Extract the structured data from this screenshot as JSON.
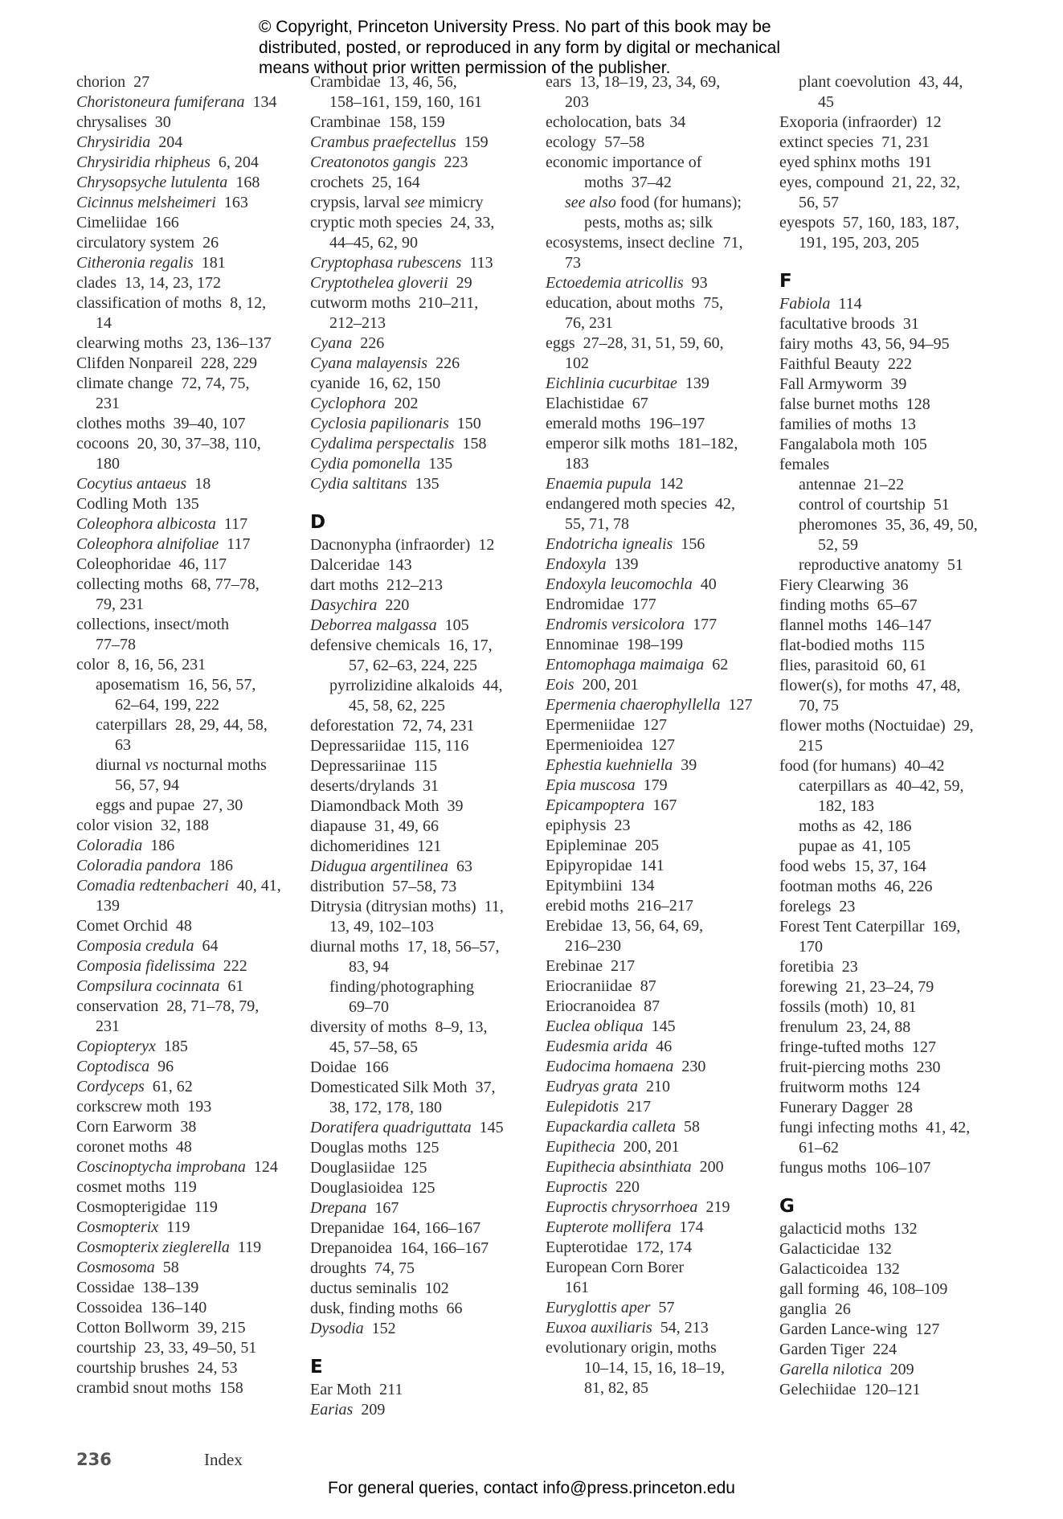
{
  "notice": [
    "© Copyright, Princeton University Press. No part of this book may be",
    "distributed, posted, or reproduced in any form by digital or mechanical",
    "means without prior written permission of the publisher."
  ],
  "columns": [
    [
      {
        "k": "e",
        "t": "chorion  27"
      },
      {
        "k": "e",
        "t": "_Choristoneura fumiferana_  134"
      },
      {
        "k": "e",
        "t": "chrysalises  30"
      },
      {
        "k": "e",
        "t": "_Chrysiridia_  204"
      },
      {
        "k": "e",
        "t": "_Chrysiridia rhipheus_  6, 204"
      },
      {
        "k": "e",
        "t": "_Chrysopsyche lutulenta_  168"
      },
      {
        "k": "e",
        "t": "_Cicinnus melsheimeri_  163"
      },
      {
        "k": "e",
        "t": "Cimeliidae  166"
      },
      {
        "k": "e",
        "t": "circulatory system  26"
      },
      {
        "k": "e",
        "t": "_Citheronia regalis_  181"
      },
      {
        "k": "e",
        "t": "clades  13, 14, 23, 172"
      },
      {
        "k": "e",
        "t": "classification of moths  8, 12,"
      },
      {
        "k": "cont",
        "t": "14"
      },
      {
        "k": "e",
        "t": "clearwing moths  23, 136–137"
      },
      {
        "k": "e",
        "t": "Clifden Nonpareil  228, 229"
      },
      {
        "k": "e",
        "t": "climate change  72, 74, 75,"
      },
      {
        "k": "cont",
        "t": "231"
      },
      {
        "k": "e",
        "t": "clothes moths  39–40, 107"
      },
      {
        "k": "e",
        "t": "cocoons  20, 30, 37–38, 110,"
      },
      {
        "k": "cont",
        "t": "180"
      },
      {
        "k": "e",
        "t": "_Cocytius antaeus_  18"
      },
      {
        "k": "e",
        "t": "Codling Moth  135"
      },
      {
        "k": "e",
        "t": "_Coleophora albicosta_  117"
      },
      {
        "k": "e",
        "t": "_Coleophora alnifoliae_  117"
      },
      {
        "k": "e",
        "t": "Coleophoridae  46, 117"
      },
      {
        "k": "e",
        "t": "collecting moths  68, 77–78,"
      },
      {
        "k": "cont",
        "t": "79, 231"
      },
      {
        "k": "e",
        "t": "collections, insect/moth"
      },
      {
        "k": "cont",
        "t": "77–78"
      },
      {
        "k": "e",
        "t": "color  8, 16, 56, 231"
      },
      {
        "k": "sub",
        "t": "aposematism  16, 56, 57,"
      },
      {
        "k": "subcont",
        "t": "62–64, 199, 222"
      },
      {
        "k": "sub",
        "t": "caterpillars  28, 29, 44, 58,"
      },
      {
        "k": "subcont",
        "t": "63"
      },
      {
        "k": "sub",
        "t": "diurnal _vs_ nocturnal moths"
      },
      {
        "k": "subcont",
        "t": "56, 57, 94"
      },
      {
        "k": "sub",
        "t": "eggs and pupae  27, 30"
      },
      {
        "k": "e",
        "t": "color vision  32, 188"
      },
      {
        "k": "e",
        "t": "_Coloradia_  186"
      },
      {
        "k": "e",
        "t": "_Coloradia pandora_  186"
      },
      {
        "k": "e",
        "t": "_Comadia redtenbacheri_  40, 41,"
      },
      {
        "k": "cont",
        "t": "139"
      },
      {
        "k": "e",
        "t": "Comet Orchid  48"
      },
      {
        "k": "e",
        "t": "_Composia credula_  64"
      },
      {
        "k": "e",
        "t": "_Composia fidelissima_  222"
      },
      {
        "k": "e",
        "t": "_Compsilura cocinnata_  61"
      },
      {
        "k": "e",
        "t": "conservation  28, 71–78, 79,"
      },
      {
        "k": "cont",
        "t": "231"
      },
      {
        "k": "e",
        "t": "_Copiopteryx_  185"
      },
      {
        "k": "e",
        "t": "_Coptodisca_  96"
      },
      {
        "k": "e",
        "t": "_Cordyceps_  61, 62"
      },
      {
        "k": "e",
        "t": "corkscrew moth  193"
      },
      {
        "k": "e",
        "t": "Corn Earworm  38"
      },
      {
        "k": "e",
        "t": "coronet moths  48"
      },
      {
        "k": "e",
        "t": "_Coscinoptycha improbana_  124"
      },
      {
        "k": "e",
        "t": "cosmet moths  119"
      },
      {
        "k": "e",
        "t": "Cosmopterigidae  119"
      },
      {
        "k": "e",
        "t": "_Cosmopterix_  119"
      },
      {
        "k": "e",
        "t": "_Cosmopterix zieglerella_  119"
      },
      {
        "k": "e",
        "t": "_Cosmosoma_  58"
      },
      {
        "k": "e",
        "t": "Cossidae  138–139"
      },
      {
        "k": "e",
        "t": "Cossoidea  136–140"
      },
      {
        "k": "e",
        "t": "Cotton Bollworm  39, 215"
      },
      {
        "k": "e",
        "t": "courtship  23, 33, 49–50, 51"
      },
      {
        "k": "e",
        "t": "courtship brushes  24, 53"
      },
      {
        "k": "e",
        "t": "crambid snout moths  158"
      }
    ],
    [
      {
        "k": "e",
        "t": "Crambidae  13, 46, 56,"
      },
      {
        "k": "cont",
        "t": "158–161, 159, 160, 161"
      },
      {
        "k": "e",
        "t": "Crambinae  158, 159"
      },
      {
        "k": "e",
        "t": "_Crambus praefectellus_  159"
      },
      {
        "k": "e",
        "t": "_Creatonotos gangis_  223"
      },
      {
        "k": "e",
        "t": "crochets  25, 164"
      },
      {
        "k": "e",
        "t": "crypsis, larval _see_ mimicry"
      },
      {
        "k": "e",
        "t": "cryptic moth species  24, 33,"
      },
      {
        "k": "cont",
        "t": "44–45, 62, 90"
      },
      {
        "k": "e",
        "t": "_Cryptophasa rubescens_  113"
      },
      {
        "k": "e",
        "t": "_Cryptothelea gloverii_  29"
      },
      {
        "k": "e",
        "t": "cutworm moths  210–211,"
      },
      {
        "k": "cont",
        "t": "212–213"
      },
      {
        "k": "e",
        "t": "_Cyana_  226"
      },
      {
        "k": "e",
        "t": "_Cyana malayensis_  226"
      },
      {
        "k": "e",
        "t": "cyanide  16, 62, 150"
      },
      {
        "k": "e",
        "t": "_Cyclophora_  202"
      },
      {
        "k": "e",
        "t": "_Cyclosia papilionaris_  150"
      },
      {
        "k": "e",
        "t": "_Cydalima perspectalis_  158"
      },
      {
        "k": "e",
        "t": "_Cydia pomonella_  135"
      },
      {
        "k": "e",
        "t": "_Cydia saltitans_  135"
      },
      {
        "k": "h",
        "t": "D"
      },
      {
        "k": "e",
        "t": "Dacnonypha (infraorder)  12"
      },
      {
        "k": "e",
        "t": "Dalceridae  143"
      },
      {
        "k": "e",
        "t": "dart moths  212–213"
      },
      {
        "k": "e",
        "t": "_Dasychira_  220"
      },
      {
        "k": "e",
        "t": "_Deborrea malgassa_  105"
      },
      {
        "k": "e",
        "t": "defensive chemicals  16, 17,"
      },
      {
        "k": "subcont",
        "t": "57, 62–63, 224, 225"
      },
      {
        "k": "sub",
        "t": "pyrrolizidine alkaloids  44,"
      },
      {
        "k": "subcont",
        "t": "45, 58, 62, 225"
      },
      {
        "k": "e",
        "t": "deforestation  72, 74, 231"
      },
      {
        "k": "e",
        "t": "Depressariidae  115, 116"
      },
      {
        "k": "e",
        "t": "Depressariinae  115"
      },
      {
        "k": "e",
        "t": "deserts/drylands  31"
      },
      {
        "k": "e",
        "t": "Diamondback Moth  39"
      },
      {
        "k": "e",
        "t": "diapause  31, 49, 66"
      },
      {
        "k": "e",
        "t": "dichomeridines  121"
      },
      {
        "k": "e",
        "t": "_Didugua argentilinea_  63"
      },
      {
        "k": "e",
        "t": "distribution  57–58, 73"
      },
      {
        "k": "e",
        "t": "Ditrysia (ditrysian moths)  11,"
      },
      {
        "k": "cont",
        "t": "13, 49, 102–103"
      },
      {
        "k": "e",
        "t": "diurnal moths  17, 18, 56–57,"
      },
      {
        "k": "subcont",
        "t": "83, 94"
      },
      {
        "k": "sub",
        "t": "finding/photographing"
      },
      {
        "k": "subcont",
        "t": "69–70"
      },
      {
        "k": "e",
        "t": "diversity of moths  8–9, 13,"
      },
      {
        "k": "cont",
        "t": "45, 57–58, 65"
      },
      {
        "k": "e",
        "t": "Doidae  166"
      },
      {
        "k": "e",
        "t": "Domesticated Silk Moth  37,"
      },
      {
        "k": "cont",
        "t": "38, 172, 178, 180"
      },
      {
        "k": "e",
        "t": "_Doratifera quadriguttata_  145"
      },
      {
        "k": "e",
        "t": "Douglas moths  125"
      },
      {
        "k": "e",
        "t": "Douglasiidae  125"
      },
      {
        "k": "e",
        "t": "Douglasioidea  125"
      },
      {
        "k": "e",
        "t": "_Drepana_  167"
      },
      {
        "k": "e",
        "t": "Drepanidae  164, 166–167"
      },
      {
        "k": "e",
        "t": "Drepanoidea  164, 166–167"
      },
      {
        "k": "e",
        "t": "droughts  74, 75"
      },
      {
        "k": "e",
        "t": "ductus seminalis  102"
      },
      {
        "k": "e",
        "t": "dusk, finding moths  66"
      },
      {
        "k": "e",
        "t": "_Dysodia_  152"
      },
      {
        "k": "h",
        "t": "E"
      },
      {
        "k": "e",
        "t": "Ear Moth  211"
      },
      {
        "k": "e",
        "t": "_Earias_  209"
      }
    ],
    [
      {
        "k": "e",
        "t": "ears  13, 18–19, 23, 34, 69,"
      },
      {
        "k": "cont",
        "t": "203"
      },
      {
        "k": "e",
        "t": "echolocation, bats  34"
      },
      {
        "k": "e",
        "t": "ecology  57–58"
      },
      {
        "k": "e",
        "t": "economic importance of"
      },
      {
        "k": "subcont",
        "t": "moths  37–42"
      },
      {
        "k": "sub",
        "t": "_see also_ food (for humans);"
      },
      {
        "k": "subcont",
        "t": "pests, moths as; silk"
      },
      {
        "k": "e",
        "t": "ecosystems, insect decline  71,"
      },
      {
        "k": "cont",
        "t": "73"
      },
      {
        "k": "e",
        "t": "_Ectoedemia atricollis_  93"
      },
      {
        "k": "e",
        "t": "education, about moths  75,"
      },
      {
        "k": "cont",
        "t": "76, 231"
      },
      {
        "k": "e",
        "t": "eggs  27–28, 31, 51, 59, 60,"
      },
      {
        "k": "cont",
        "t": "102"
      },
      {
        "k": "e",
        "t": "_Eichlinia cucurbitae_  139"
      },
      {
        "k": "e",
        "t": "Elachistidae  67"
      },
      {
        "k": "e",
        "t": "emerald moths  196–197"
      },
      {
        "k": "e",
        "t": "emperor silk moths  181–182,"
      },
      {
        "k": "cont",
        "t": "183"
      },
      {
        "k": "e",
        "t": "_Enaemia pupula_  142"
      },
      {
        "k": "e",
        "t": "endangered moth species  42,"
      },
      {
        "k": "cont",
        "t": "55, 71, 78"
      },
      {
        "k": "e",
        "t": "_Endotricha ignealis_  156"
      },
      {
        "k": "e",
        "t": "_Endoxyla_  139"
      },
      {
        "k": "e",
        "t": "_Endoxyla leucomochla_  40"
      },
      {
        "k": "e",
        "t": "Endromidae  177"
      },
      {
        "k": "e",
        "t": "_Endromis versicolora_  177"
      },
      {
        "k": "e",
        "t": "Ennominae  198–199"
      },
      {
        "k": "e",
        "t": "_Entomophaga maimaiga_  62"
      },
      {
        "k": "e",
        "t": "_Eois_  200, 201"
      },
      {
        "k": "e",
        "t": "_Epermenia chaerophyllella_  127"
      },
      {
        "k": "e",
        "t": "Epermeniidae  127"
      },
      {
        "k": "e",
        "t": "Epermenioidea  127"
      },
      {
        "k": "e",
        "t": "_Ephestia kuehniella_  39"
      },
      {
        "k": "e",
        "t": "_Epia muscosa_  179"
      },
      {
        "k": "e",
        "t": "_Epicampoptera_  167"
      },
      {
        "k": "e",
        "t": "epiphysis  23"
      },
      {
        "k": "e",
        "t": "Epipleminae  205"
      },
      {
        "k": "e",
        "t": "Epipyropidae  141"
      },
      {
        "k": "e",
        "t": "Epitymbiini  134"
      },
      {
        "k": "e",
        "t": "erebid moths  216–217"
      },
      {
        "k": "e",
        "t": "Erebidae  13, 56, 64, 69,"
      },
      {
        "k": "cont",
        "t": "216–230"
      },
      {
        "k": "e",
        "t": "Erebinae  217"
      },
      {
        "k": "e",
        "t": "Eriocraniidae  87"
      },
      {
        "k": "e",
        "t": "Eriocranoidea  87"
      },
      {
        "k": "e",
        "t": "_Euclea obliqua_  145"
      },
      {
        "k": "e",
        "t": "_Eudesmia arida_  46"
      },
      {
        "k": "e",
        "t": "_Eudocima homaena_  230"
      },
      {
        "k": "e",
        "t": "_Eudryas grata_  210"
      },
      {
        "k": "e",
        "t": "_Eulepidotis_  217"
      },
      {
        "k": "e",
        "t": "_Eupackardia calleta_  58"
      },
      {
        "k": "e",
        "t": "_Eupithecia_  200, 201"
      },
      {
        "k": "e",
        "t": "_Eupithecia absinthiata_  200"
      },
      {
        "k": "e",
        "t": "_Euproctis_  220"
      },
      {
        "k": "e",
        "t": "_Euproctis chrysorrhoea_  219"
      },
      {
        "k": "e",
        "t": "_Eupterote mollifera_  174"
      },
      {
        "k": "e",
        "t": "Eupterotidae  172, 174"
      },
      {
        "k": "e",
        "t": "European Corn Borer"
      },
      {
        "k": "cont",
        "t": "161"
      },
      {
        "k": "e",
        "t": "_Euryglottis aper_  57"
      },
      {
        "k": "e",
        "t": "_Euxoa auxiliaris_  54, 213"
      },
      {
        "k": "e",
        "t": "evolutionary origin, moths"
      },
      {
        "k": "subcont",
        "t": "10–14, 15, 16, 18–19,"
      },
      {
        "k": "subcont",
        "t": "81, 82, 85"
      }
    ],
    [
      {
        "k": "sub",
        "t": "plant coevolution  43, 44,"
      },
      {
        "k": "subcont",
        "t": "45"
      },
      {
        "k": "e",
        "t": "Exoporia (infraorder)  12"
      },
      {
        "k": "e",
        "t": "extinct species  71, 231"
      },
      {
        "k": "e",
        "t": "eyed sphinx moths  191"
      },
      {
        "k": "e",
        "t": "eyes, compound  21, 22, 32,"
      },
      {
        "k": "cont",
        "t": "56, 57"
      },
      {
        "k": "e",
        "t": "eyespots  57, 160, 183, 187,"
      },
      {
        "k": "cont",
        "t": "191, 195, 203, 205"
      },
      {
        "k": "h",
        "t": "F"
      },
      {
        "k": "e",
        "t": "_Fabiola_  114"
      },
      {
        "k": "e",
        "t": "facultative broods  31"
      },
      {
        "k": "e",
        "t": "fairy moths  43, 56, 94–95"
      },
      {
        "k": "e",
        "t": "Faithful Beauty  222"
      },
      {
        "k": "e",
        "t": "Fall Armyworm  39"
      },
      {
        "k": "e",
        "t": "false burnet moths  128"
      },
      {
        "k": "e",
        "t": "families of moths  13"
      },
      {
        "k": "e",
        "t": "Fangalabola moth  105"
      },
      {
        "k": "e",
        "t": "females"
      },
      {
        "k": "sub",
        "t": "antennae  21–22"
      },
      {
        "k": "sub",
        "t": "control of courtship  51"
      },
      {
        "k": "sub",
        "t": "pheromones  35, 36, 49, 50,"
      },
      {
        "k": "subcont",
        "t": "52, 59"
      },
      {
        "k": "sub",
        "t": "reproductive anatomy  51"
      },
      {
        "k": "e",
        "t": "Fiery Clearwing  36"
      },
      {
        "k": "e",
        "t": "finding moths  65–67"
      },
      {
        "k": "e",
        "t": "flannel moths  146–147"
      },
      {
        "k": "e",
        "t": "flat-bodied moths  115"
      },
      {
        "k": "e",
        "t": "flies, parasitoid  60, 61"
      },
      {
        "k": "e",
        "t": "flower(s), for moths  47, 48,"
      },
      {
        "k": "cont",
        "t": "70, 75"
      },
      {
        "k": "e",
        "t": "flower moths (Noctuidae)  29,"
      },
      {
        "k": "cont",
        "t": "215"
      },
      {
        "k": "e",
        "t": "food (for humans)  40–42"
      },
      {
        "k": "sub",
        "t": "caterpillars as  40–42, 59,"
      },
      {
        "k": "subcont",
        "t": "182, 183"
      },
      {
        "k": "sub",
        "t": "moths as  42, 186"
      },
      {
        "k": "sub",
        "t": "pupae as  41, 105"
      },
      {
        "k": "e",
        "t": "food webs  15, 37, 164"
      },
      {
        "k": "e",
        "t": "footman moths  46, 226"
      },
      {
        "k": "e",
        "t": "forelegs  23"
      },
      {
        "k": "e",
        "t": "Forest Tent Caterpillar  169,"
      },
      {
        "k": "cont",
        "t": "170"
      },
      {
        "k": "e",
        "t": "foretibia  23"
      },
      {
        "k": "e",
        "t": "forewing  21, 23–24, 79"
      },
      {
        "k": "e",
        "t": "fossils (moth)  10, 81"
      },
      {
        "k": "e",
        "t": "frenulum  23, 24, 88"
      },
      {
        "k": "e",
        "t": "fringe-tufted moths  127"
      },
      {
        "k": "e",
        "t": "fruit-piercing moths  230"
      },
      {
        "k": "e",
        "t": "fruitworm moths  124"
      },
      {
        "k": "e",
        "t": "Funerary Dagger  28"
      },
      {
        "k": "e",
        "t": "fungi infecting moths  41, 42,"
      },
      {
        "k": "cont",
        "t": "61–62"
      },
      {
        "k": "e",
        "t": "fungus moths  106–107"
      },
      {
        "k": "h",
        "t": "G"
      },
      {
        "k": "e",
        "t": "galacticid moths  132"
      },
      {
        "k": "e",
        "t": "Galacticidae  132"
      },
      {
        "k": "e",
        "t": "Galacticoidea  132"
      },
      {
        "k": "e",
        "t": "gall forming  46, 108–109"
      },
      {
        "k": "e",
        "t": "ganglia  26"
      },
      {
        "k": "e",
        "t": "Garden Lance-wing  127"
      },
      {
        "k": "e",
        "t": "Garden Tiger  224"
      },
      {
        "k": "e",
        "t": "_Garella nilotica_  209"
      },
      {
        "k": "e",
        "t": "Gelechiidae  120–121"
      }
    ]
  ],
  "folio": {
    "page_number": "236",
    "running_head": "Index"
  },
  "footer": "For general queries, contact info@press.princeton.edu"
}
